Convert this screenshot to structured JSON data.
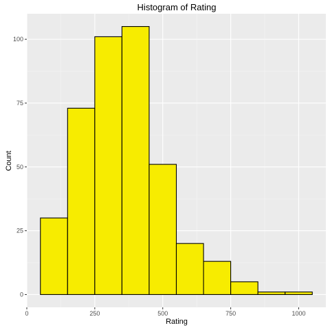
{
  "chart_data": {
    "type": "bar",
    "title": "Histogram of Rating",
    "xlabel": "Rating",
    "ylabel": "Count",
    "bins": [
      {
        "from": 50,
        "to": 150,
        "count": 30
      },
      {
        "from": 150,
        "to": 250,
        "count": 73
      },
      {
        "from": 250,
        "to": 350,
        "count": 101
      },
      {
        "from": 350,
        "to": 450,
        "count": 105
      },
      {
        "from": 450,
        "to": 550,
        "count": 51
      },
      {
        "from": 550,
        "to": 650,
        "count": 20
      },
      {
        "from": 650,
        "to": 750,
        "count": 13
      },
      {
        "from": 750,
        "to": 850,
        "count": 5
      },
      {
        "from": 850,
        "to": 950,
        "count": 1
      },
      {
        "from": 950,
        "to": 1050,
        "count": 1
      }
    ],
    "xlim": [
      0,
      1100
    ],
    "ylim": [
      -5,
      110
    ],
    "xticks": [
      0,
      250,
      500,
      750,
      1000
    ],
    "xtick_labels": [
      "0",
      "250",
      "500",
      "750",
      "1000"
    ],
    "yticks": [
      0,
      25,
      50,
      75,
      100
    ],
    "ytick_labels": [
      "0",
      "25",
      "50",
      "75",
      "100"
    ],
    "grid": true,
    "colors": {
      "panel": "#ebebeb",
      "grid_major": "#ffffff",
      "grid_minor": "#f5f5f5",
      "bar_fill": "#f7ec00",
      "bar_stroke": "#000000"
    }
  }
}
